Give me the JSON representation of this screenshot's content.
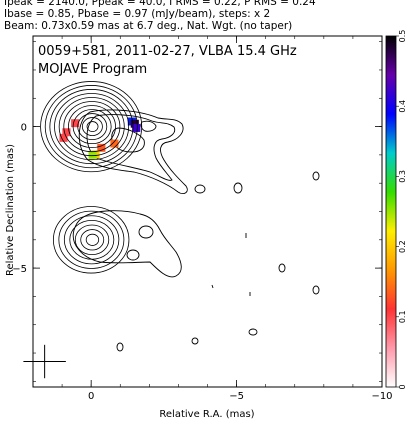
{
  "header": {
    "line1": "Ipeak = 2140.0, Ppeak = 40.0, I RMS = 0.22, P RMS = 0.24",
    "line2": "Ibase = 0.85, Pbase = 0.97 (mJy/beam), steps: x 2",
    "line3": "Beam: 0.73x0.59 mas at 6.7 deg., Nat. Wgt. (no taper)"
  },
  "chart_data": {
    "type": "contour",
    "title": "0059+581, 2011-02-27, VLBA 15.4 GHz",
    "subtitle": "MOJAVE Program",
    "xlabel": "Relative R.A. (mas)",
    "ylabel": "Relative Declination (mas)",
    "xlim": [
      2,
      -10
    ],
    "ylim": [
      -9.2,
      3.2
    ],
    "xticks": [
      {
        "v": 0,
        "label": "0"
      },
      {
        "v": -5,
        "label": "−5"
      },
      {
        "v": -10,
        "label": "−10"
      }
    ],
    "yticks": [
      {
        "v": 0,
        "label": "0"
      },
      {
        "v": -5,
        "label": "−5"
      }
    ],
    "colorbar": {
      "range": [
        0,
        0.5
      ],
      "ticks": [
        {
          "v": 0,
          "label": "0"
        },
        {
          "v": 0.1,
          "label": "0.1"
        },
        {
          "v": 0.2,
          "label": "0.2"
        },
        {
          "v": 0.3,
          "label": "0.3"
        },
        {
          "v": 0.4,
          "label": "0.4"
        },
        {
          "v": 0.5,
          "label": "0.5"
        }
      ],
      "colors": [
        "#ffffff",
        "#ff99aa",
        "#ff3333",
        "#ff9900",
        "#ffee00",
        "#33dd00",
        "#00cccc",
        "#0000ff",
        "#6600aa",
        "#000000"
      ]
    },
    "beam": {
      "major": 0.73,
      "minor": 0.59,
      "pa": 6.7
    },
    "core": {
      "x": 0,
      "y": 0,
      "n_contours": 11
    },
    "second_core": {
      "x": 0,
      "y": -4.0,
      "n_contours": 7
    },
    "polarization": [
      {
        "x": 0.85,
        "y": -0.2,
        "level": 0.1
      },
      {
        "x": 0.95,
        "y": -0.4,
        "level": 0.1
      },
      {
        "x": 0.55,
        "y": 0.12,
        "level": 0.1
      },
      {
        "x": -0.35,
        "y": -0.75,
        "level": 0.13
      },
      {
        "x": -0.15,
        "y": -0.98,
        "level": 0.2
      },
      {
        "x": -0.05,
        "y": -1.0,
        "level": 0.25
      },
      {
        "x": -0.8,
        "y": -0.6,
        "level": 0.14
      },
      {
        "x": -1.4,
        "y": 0.18,
        "level": 0.38
      },
      {
        "x": -1.5,
        "y": 0.1,
        "level": 0.48
      },
      {
        "x": -1.55,
        "y": -0.05,
        "level": 0.42
      }
    ]
  }
}
